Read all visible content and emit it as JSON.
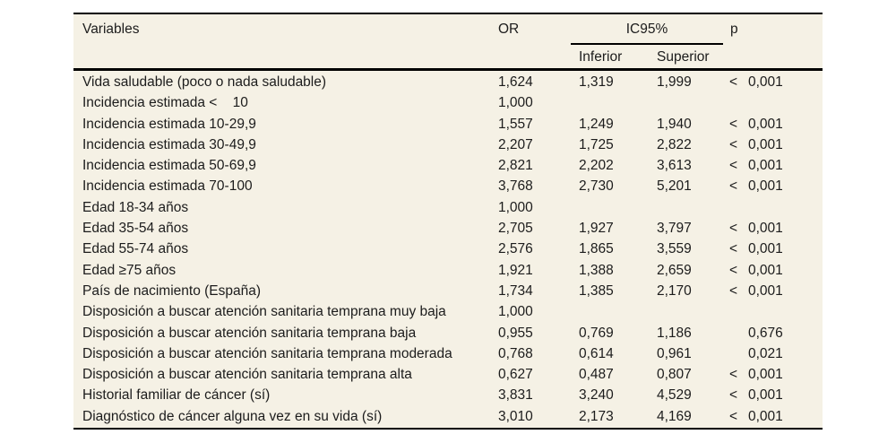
{
  "table": {
    "background_color": "#f5f1e5",
    "rule_color": "#000000",
    "header": {
      "variables": "Variables",
      "or": "OR",
      "ic95": "IC95%",
      "inferior": "Inferior",
      "superior": "Superior",
      "p": "p"
    },
    "rows": [
      {
        "variable": "Vida saludable (poco o nada saludable)",
        "or": "1,624",
        "inferior": "1,319",
        "superior": "1,999",
        "p_sign": "<",
        "p": "0,001"
      },
      {
        "variable": "Incidencia estimada <    10",
        "or": "1,000",
        "inferior": "",
        "superior": "",
        "p_sign": "",
        "p": ""
      },
      {
        "variable": "Incidencia estimada 10-29,9",
        "or": "1,557",
        "inferior": "1,249",
        "superior": "1,940",
        "p_sign": "<",
        "p": "0,001"
      },
      {
        "variable": "Incidencia estimada 30-49,9",
        "or": "2,207",
        "inferior": "1,725",
        "superior": "2,822",
        "p_sign": "<",
        "p": "0,001"
      },
      {
        "variable": "Incidencia estimada 50-69,9",
        "or": "2,821",
        "inferior": "2,202",
        "superior": "3,613",
        "p_sign": "<",
        "p": "0,001"
      },
      {
        "variable": "Incidencia estimada 70-100",
        "or": "3,768",
        "inferior": "2,730",
        "superior": "5,201",
        "p_sign": "<",
        "p": "0,001"
      },
      {
        "variable": "Edad 18-34 años",
        "or": "1,000",
        "inferior": "",
        "superior": "",
        "p_sign": "",
        "p": ""
      },
      {
        "variable": "Edad 35-54 años",
        "or": "2,705",
        "inferior": "1,927",
        "superior": "3,797",
        "p_sign": "<",
        "p": "0,001"
      },
      {
        "variable": "Edad 55-74 años",
        "or": "2,576",
        "inferior": "1,865",
        "superior": "3,559",
        "p_sign": "<",
        "p": "0,001"
      },
      {
        "variable": "Edad ≥75 años",
        "or": "1,921",
        "inferior": "1,388",
        "superior": "2,659",
        "p_sign": "<",
        "p": "0,001"
      },
      {
        "variable": "País de nacimiento (España)",
        "or": "1,734",
        "inferior": "1,385",
        "superior": "2,170",
        "p_sign": "<",
        "p": "0,001"
      },
      {
        "variable": "Disposición a buscar atención sanitaria temprana muy baja",
        "or": "1,000",
        "inferior": "",
        "superior": "",
        "p_sign": "",
        "p": ""
      },
      {
        "variable": "Disposición a buscar atención sanitaria temprana baja",
        "or": "0,955",
        "inferior": "0,769",
        "superior": "1,186",
        "p_sign": "",
        "p": "0,676"
      },
      {
        "variable": "Disposición a buscar atención sanitaria temprana moderada",
        "or": "0,768",
        "inferior": "0,614",
        "superior": "0,961",
        "p_sign": "",
        "p": "0,021"
      },
      {
        "variable": "Disposición a buscar atención sanitaria temprana alta",
        "or": "0,627",
        "inferior": "0,487",
        "superior": "0,807",
        "p_sign": "<",
        "p": "0,001"
      },
      {
        "variable": "Historial familiar de cáncer (sí)",
        "or": "3,831",
        "inferior": "3,240",
        "superior": "4,529",
        "p_sign": "<",
        "p": "0,001"
      },
      {
        "variable": "Diagnóstico de cáncer alguna vez en su vida (sí)",
        "or": "3,010",
        "inferior": "2,173",
        "superior": "4,169",
        "p_sign": "<",
        "p": "0,001"
      }
    ]
  }
}
